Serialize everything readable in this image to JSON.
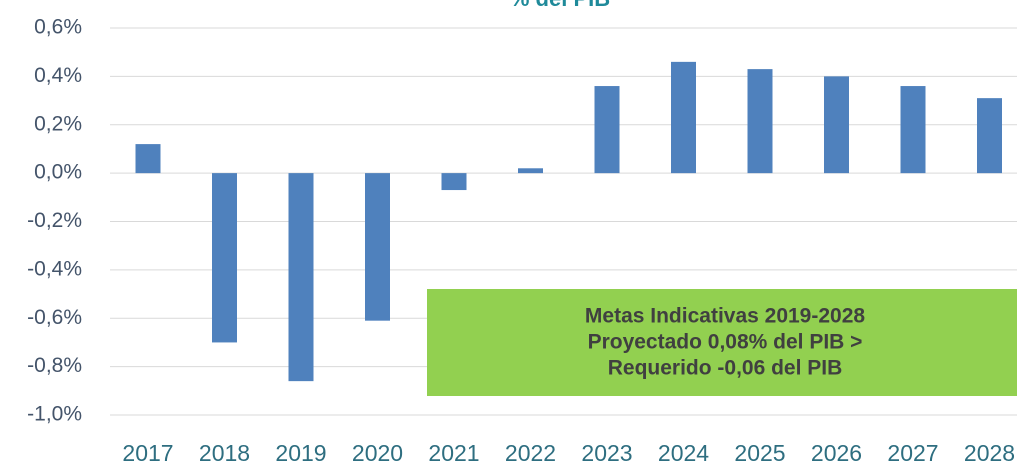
{
  "chart_data": {
    "type": "bar",
    "title": "% del PIB",
    "categories": [
      "2017",
      "2018",
      "2019",
      "2020",
      "2021",
      "2022",
      "2023",
      "2024",
      "2025",
      "2026",
      "2027",
      "2028"
    ],
    "values": [
      0.12,
      -0.7,
      -0.86,
      -0.61,
      -0.07,
      0.02,
      0.36,
      0.46,
      0.43,
      0.4,
      0.36,
      0.31
    ],
    "color": "#4f81bd",
    "ylim": [
      -1.0,
      0.6
    ],
    "yticks": [
      {
        "value": -1.0,
        "label": "-1,0%"
      },
      {
        "value": -0.8,
        "label": "-0,8%"
      },
      {
        "value": -0.6,
        "label": "-0,6%"
      },
      {
        "value": -0.4,
        "label": "-0,4%"
      },
      {
        "value": -0.2,
        "label": "-0,2%"
      },
      {
        "value": 0,
        "label": "0,0%"
      },
      {
        "value": 0.2,
        "label": "0,2%"
      },
      {
        "value": 0.4,
        "label": "0,4%"
      },
      {
        "value": 0.6,
        "label": "0,6%"
      }
    ],
    "grid": true,
    "annotation": [
      "Metas Indicativas 2019-2028",
      "Proyectado 0,08%  del PIB >",
      "Requerido -0,06 del PIB"
    ]
  }
}
